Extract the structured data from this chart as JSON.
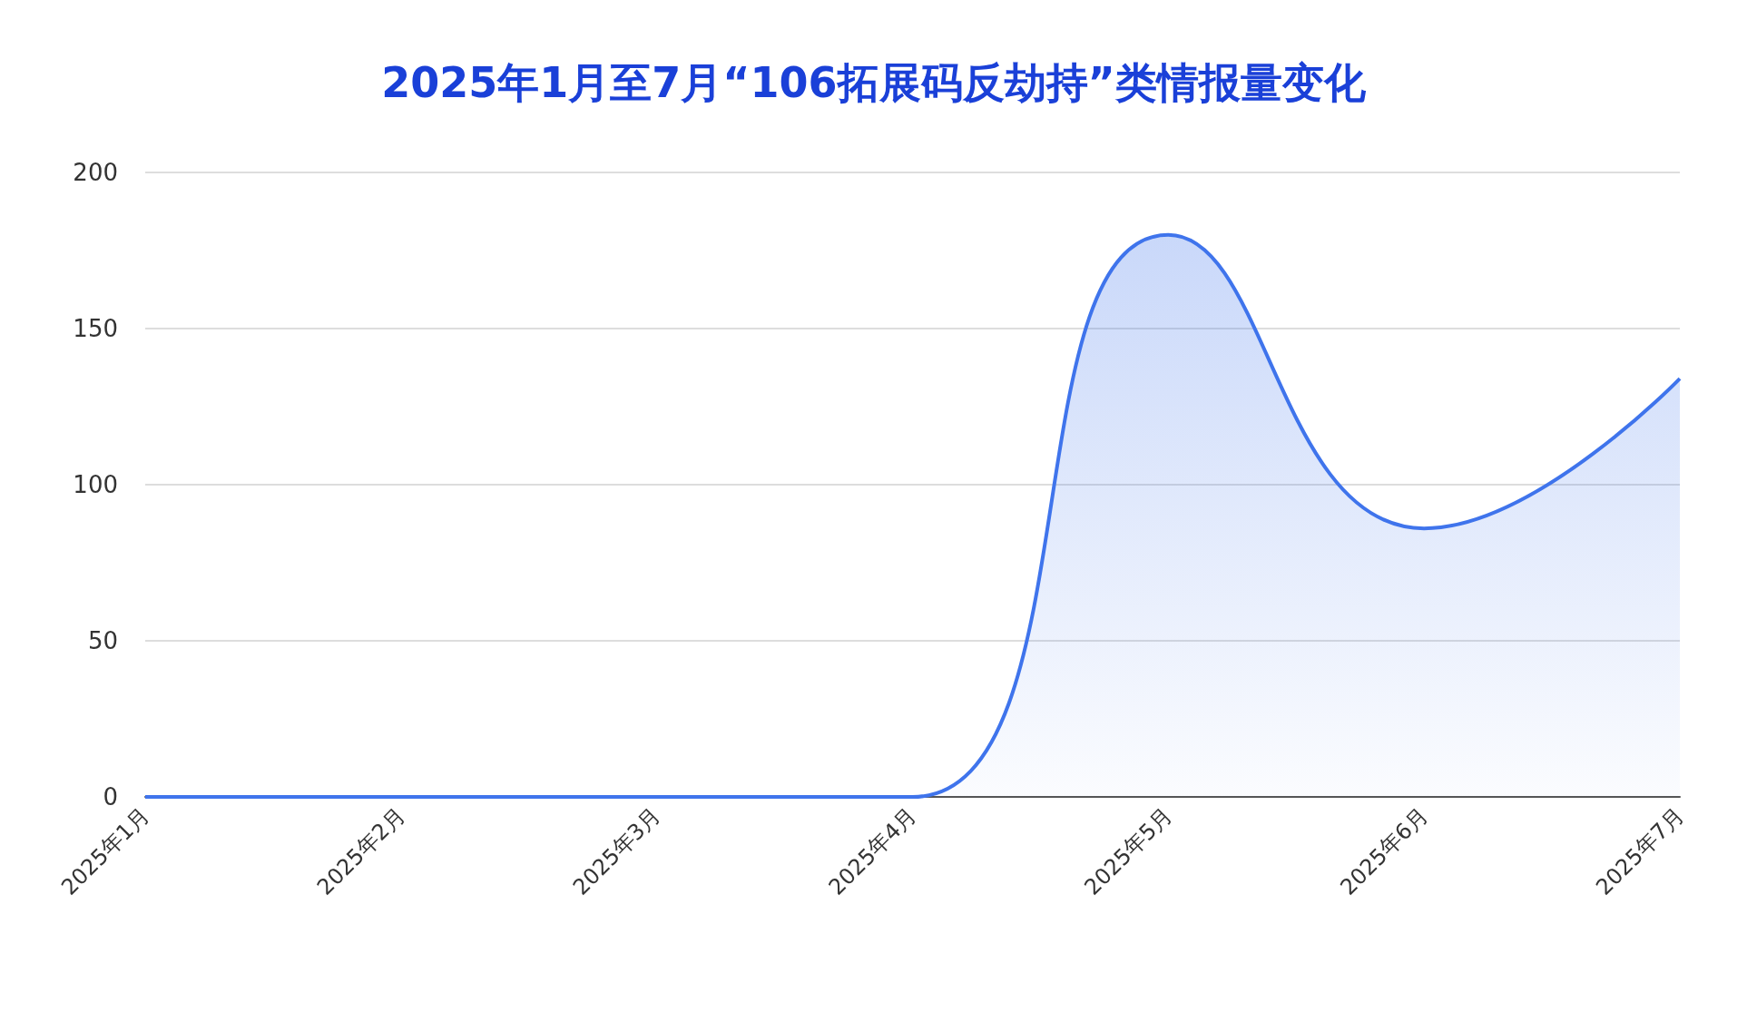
{
  "chart_data": {
    "type": "area",
    "title": "2025年1月至7月“106拓展码反劫持”类情报量变化",
    "categories": [
      "2025年1月",
      "2025年2月",
      "2025年3月",
      "2025年4月",
      "2025年5月",
      "2025年6月",
      "2025年7月"
    ],
    "values": [
      0,
      0,
      0,
      0,
      180,
      86,
      134
    ],
    "color": "#3f74ec",
    "ylim": [
      0,
      200
    ],
    "yticks": [
      0,
      50,
      100,
      150,
      200
    ],
    "grid": "y"
  }
}
